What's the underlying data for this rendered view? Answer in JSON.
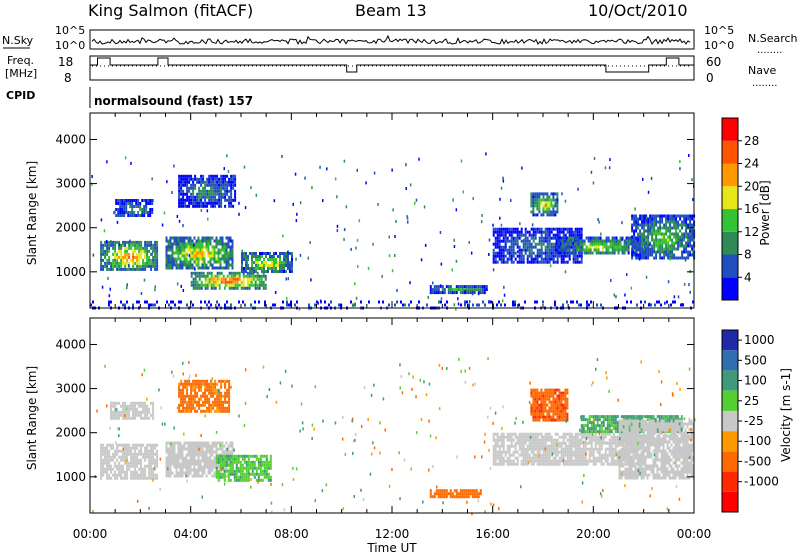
{
  "header": {
    "station": "King Salmon (fitACF)",
    "beam": "Beam 13",
    "date": "10/Oct/2010"
  },
  "top_panel": {
    "left_label_top": "N.Sky",
    "left_label_freq_1": "Freq.",
    "left_label_freq_2": "[MHz]",
    "left_label_cpid": "CPID",
    "right_label_search": "N.Search",
    "right_label_nave": "Nave",
    "dotted_mark": "........",
    "nsky_ticks": [
      "10^5",
      "10^0"
    ],
    "freq_ticks": [
      "18",
      "8"
    ],
    "nave_ticks": [
      "60",
      "0"
    ],
    "cpid_text": "normalsound (fast) 157"
  },
  "axes": {
    "x_ticks": [
      "00:00",
      "04:00",
      "08:00",
      "12:00",
      "16:00",
      "20:00",
      "00:00"
    ],
    "x_label": "Time UT",
    "y_ticks": [
      "1000",
      "2000",
      "3000",
      "4000"
    ],
    "y_label": "Slant Range [km]"
  },
  "power_colorbar": {
    "label": "Power [dB]",
    "ticks": [
      "4",
      "8",
      "12",
      "16",
      "20",
      "24",
      "28"
    ],
    "colors": [
      "#0000ff",
      "#1f4fbf",
      "#2e8b57",
      "#34c334",
      "#e6e619",
      "#ff9900",
      "#ff5500",
      "#ff0000"
    ]
  },
  "velocity_colorbar": {
    "label": "Velocity [m s-1]",
    "ticks": [
      "1000",
      "500",
      "100",
      "25",
      "-25",
      "-100",
      "-500",
      "-1000"
    ],
    "colors": [
      "#1e2aa8",
      "#2f6fb0",
      "#3e9a7a",
      "#55d030",
      "#c8c8c8",
      "#ff9900",
      "#ff6a00",
      "#ff2a00",
      "#ff0000"
    ]
  },
  "chart_data": [
    {
      "type": "heatmap",
      "title": "Power",
      "xlabel": "Time UT",
      "ylabel": "Slant Range [km]",
      "xlim": [
        0,
        24
      ],
      "ylim": [
        180,
        4600
      ],
      "colorbar_label": "Power [dB]",
      "color_range": [
        0,
        32
      ],
      "blobs": [
        {
          "t": [
            0.4,
            2.7
          ],
          "r": [
            1050,
            1700
          ],
          "val": 22
        },
        {
          "t": [
            3.0,
            5.7
          ],
          "r": [
            1100,
            1800
          ],
          "val": 20
        },
        {
          "t": [
            4.0,
            7.0
          ],
          "r": [
            650,
            1000
          ],
          "val": 26
        },
        {
          "t": [
            6.0,
            8.0
          ],
          "r": [
            1000,
            1450
          ],
          "val": 18
        },
        {
          "t": [
            1.0,
            2.5
          ],
          "r": [
            2250,
            2650
          ],
          "val": 10
        },
        {
          "t": [
            3.5,
            5.8
          ],
          "r": [
            2500,
            3200
          ],
          "val": 9
        },
        {
          "t": [
            13.5,
            15.8
          ],
          "r": [
            550,
            700
          ],
          "val": 12
        },
        {
          "t": [
            17.5,
            18.6
          ],
          "r": [
            2300,
            2800
          ],
          "val": 18
        },
        {
          "t": [
            16.0,
            19.5
          ],
          "r": [
            1200,
            2000
          ],
          "val": 8
        },
        {
          "t": [
            18.5,
            22.0
          ],
          "r": [
            1400,
            1800
          ],
          "val": 16
        },
        {
          "t": [
            21.5,
            24.0
          ],
          "r": [
            1300,
            2300
          ],
          "val": 14
        },
        {
          "t": [
            0.0,
            24.0
          ],
          "r": [
            180,
            350
          ],
          "val": 6
        }
      ]
    },
    {
      "type": "heatmap",
      "title": "Velocity",
      "xlabel": "Time UT",
      "ylabel": "Slant Range [km]",
      "xlim": [
        0,
        24
      ],
      "ylim": [
        180,
        4600
      ],
      "colorbar_label": "Velocity [m s-1]",
      "blobs": [
        {
          "t": [
            0.4,
            2.7
          ],
          "r": [
            1000,
            1750
          ],
          "val": 0
        },
        {
          "t": [
            3.0,
            5.7
          ],
          "r": [
            1000,
            1800
          ],
          "val": 0
        },
        {
          "t": [
            5.0,
            7.2
          ],
          "r": [
            900,
            1500
          ],
          "val": 80
        },
        {
          "t": [
            0.8,
            2.5
          ],
          "r": [
            2300,
            2700
          ],
          "val": 0
        },
        {
          "t": [
            3.5,
            5.5
          ],
          "r": [
            2500,
            3200
          ],
          "val": -150
        },
        {
          "t": [
            13.5,
            15.5
          ],
          "r": [
            550,
            720
          ],
          "val": -200
        },
        {
          "t": [
            17.5,
            19.0
          ],
          "r": [
            2300,
            3000
          ],
          "val": -400
        },
        {
          "t": [
            16.0,
            22.0
          ],
          "r": [
            1300,
            2000
          ],
          "val": 0
        },
        {
          "t": [
            19.5,
            23.5
          ],
          "r": [
            2000,
            2400
          ],
          "val": 120
        },
        {
          "t": [
            21.0,
            24.0
          ],
          "r": [
            1000,
            2300
          ],
          "val": 0
        }
      ]
    }
  ]
}
